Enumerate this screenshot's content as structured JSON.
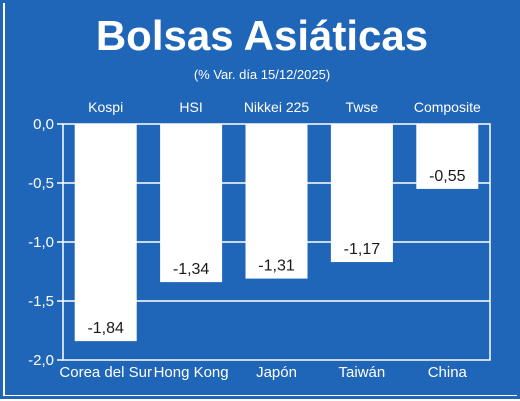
{
  "chart_data": {
    "type": "bar",
    "title": "Bolsas Asiáticas",
    "subtitle": "(% Var. día  15/12/2025)",
    "categories": [
      "Corea del Sur",
      "Hong Kong",
      "Japón",
      "Taiwán",
      "China"
    ],
    "index_names": [
      "Kospi",
      "HSI",
      "Nikkei 225",
      "Twse",
      "Composite"
    ],
    "values": [
      -1.84,
      -1.34,
      -1.31,
      -1.17,
      -0.55
    ],
    "value_labels": [
      "-1,84",
      "-1,34",
      "-1,31",
      "-1,17",
      "-0,55"
    ],
    "y_ticks": [
      0,
      -0.5,
      -1.0,
      -1.5,
      -2.0
    ],
    "y_tick_labels": [
      "0,0",
      "-0,5",
      "-1,0",
      "-1,5",
      "-2,0"
    ],
    "ylim": [
      -2.0,
      0
    ],
    "grid": true,
    "colors": {
      "background": "#2066b8",
      "bar": "#ffffff",
      "text": "#ffffff",
      "value_text": "#1a1a1a",
      "border": "#ffffff"
    }
  }
}
